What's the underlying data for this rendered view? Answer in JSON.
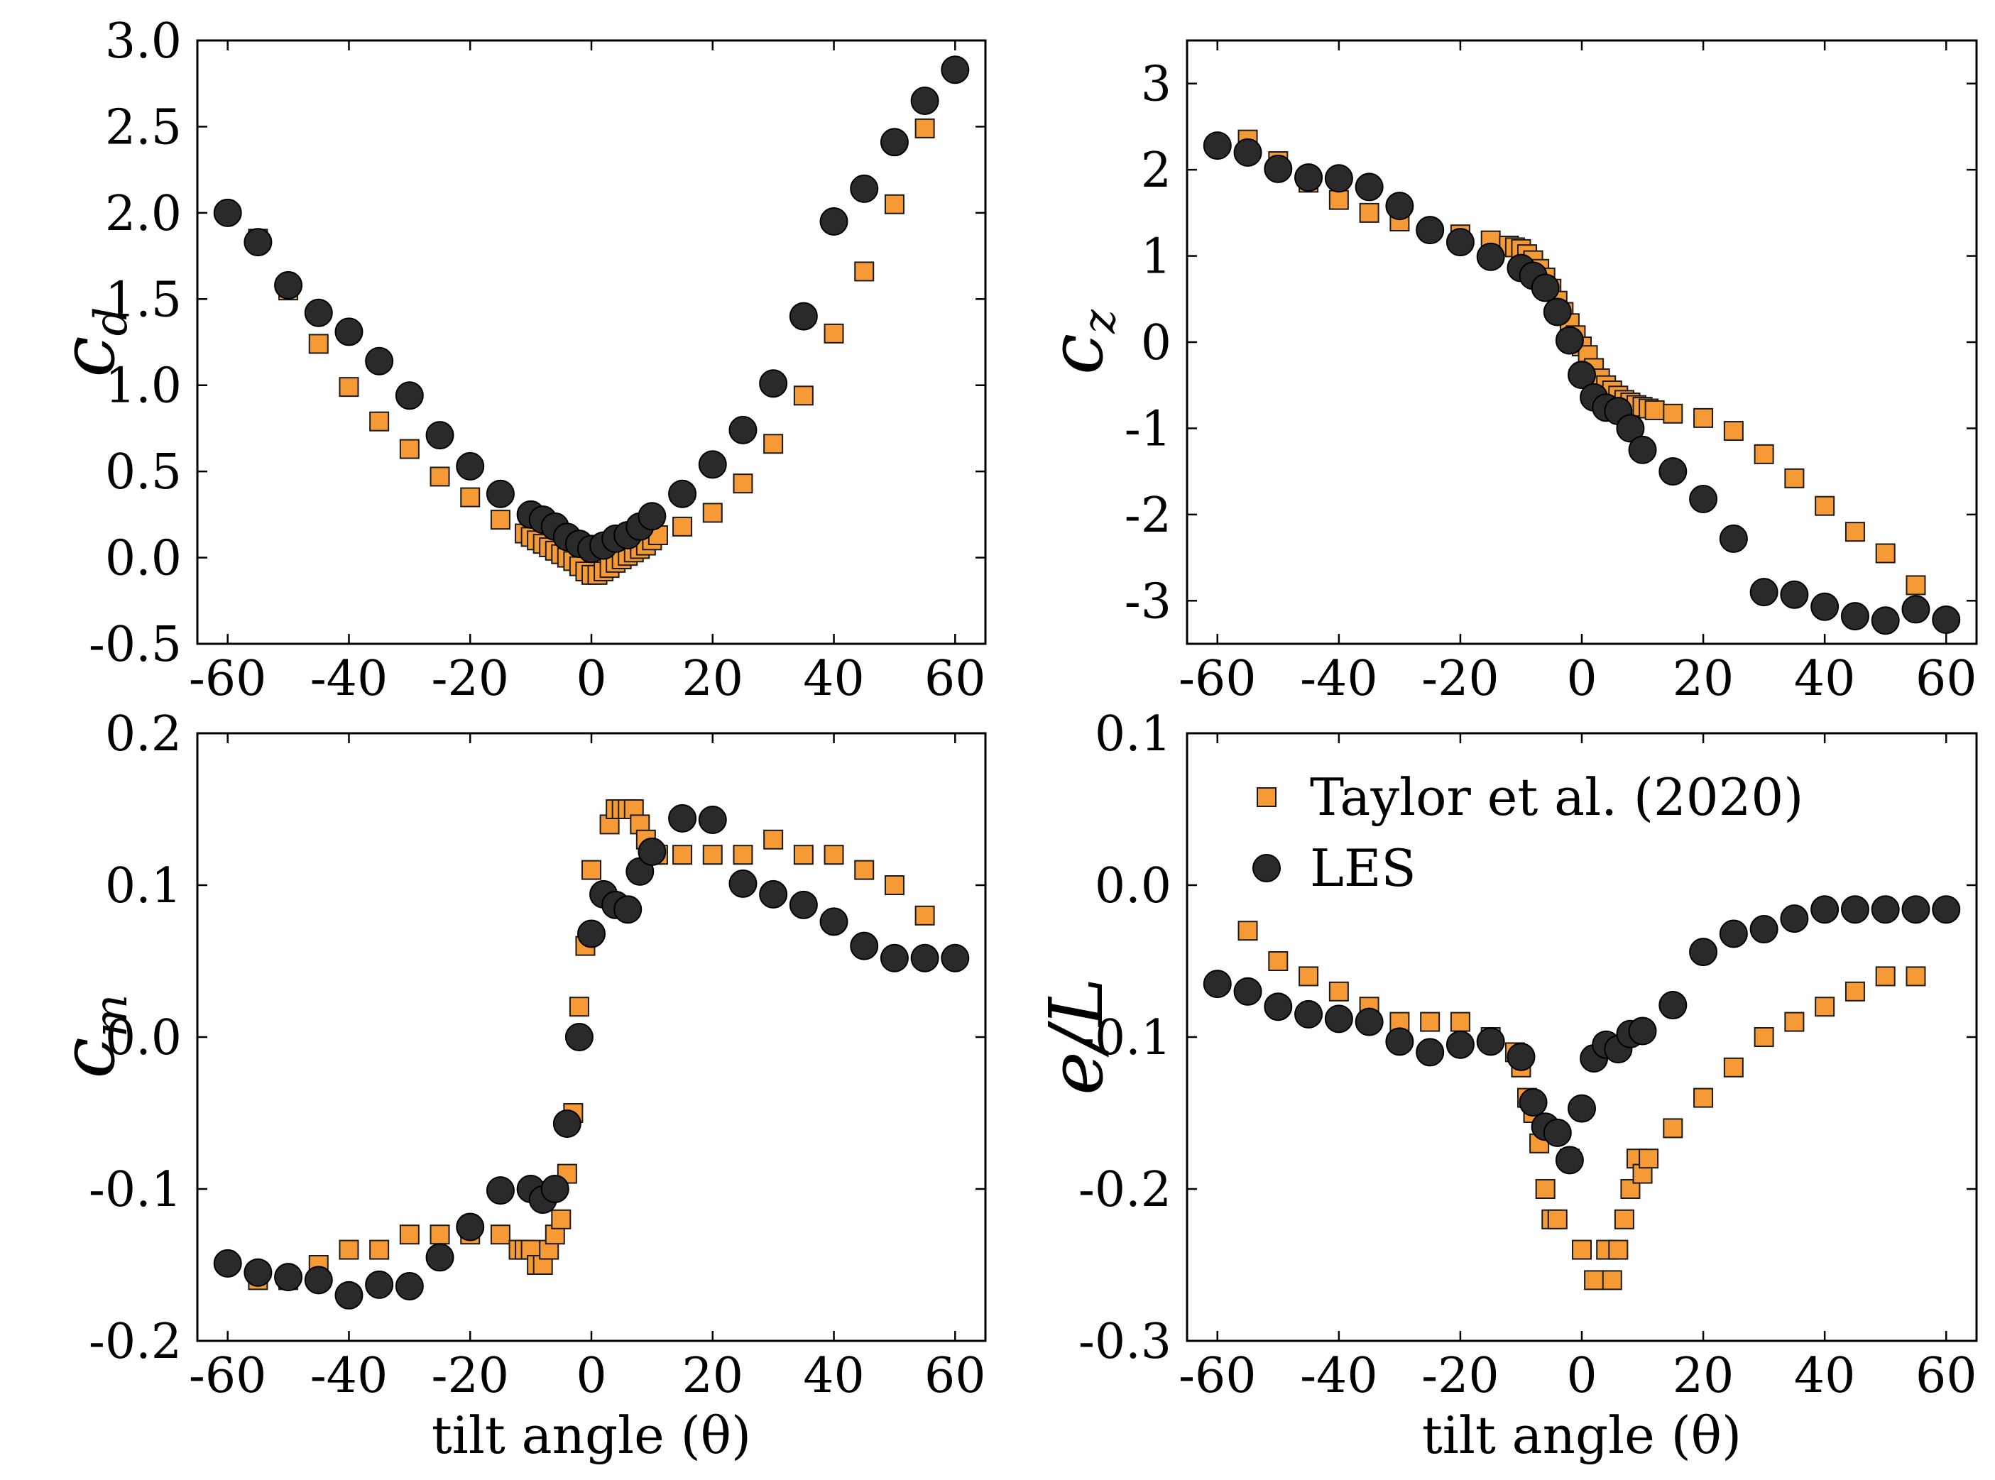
{
  "colors": {
    "taylor": "#f59a35",
    "les": "#2a2a2a",
    "edge": "#1a1a1a"
  },
  "legend": {
    "series_a": "Taylor et al. (2020)",
    "series_b": "LES"
  },
  "chart_data": [
    {
      "id": "cd",
      "type": "scatter",
      "ylabel": "c",
      "ylabel_sub": "d",
      "xlabel": "",
      "xlim": [
        -65,
        65
      ],
      "ylim": [
        -0.5,
        3.0
      ],
      "xticks": [
        -60,
        -40,
        -20,
        0,
        20,
        40,
        60
      ],
      "xtick_labels": [
        "-60",
        "-40",
        "-20",
        "0",
        "20",
        "40",
        "60"
      ],
      "yticks": [
        -0.5,
        0.0,
        0.5,
        1.0,
        1.5,
        2.0,
        2.5,
        3.0
      ],
      "ytick_labels": [
        "-0.5",
        "0.0",
        "0.5",
        "1.0",
        "1.5",
        "2.0",
        "2.5",
        "3.0"
      ],
      "series": [
        {
          "name": "Taylor et al. (2020)",
          "marker": "square",
          "x": [
            -55,
            -50,
            -45,
            -40,
            -35,
            -30,
            -25,
            -20,
            -15,
            -11,
            -10,
            -9,
            -8,
            -7,
            -6,
            -5,
            -4,
            -3,
            -2,
            -1,
            0,
            1,
            2,
            3,
            4,
            5,
            6,
            7,
            8,
            9,
            10,
            11,
            15,
            20,
            25,
            30,
            35,
            40,
            45,
            50,
            55
          ],
          "y": [
            1.85,
            1.55,
            1.24,
            0.99,
            0.79,
            0.63,
            0.47,
            0.35,
            0.22,
            0.14,
            0.12,
            0.1,
            0.08,
            0.06,
            0.04,
            0.02,
            0.0,
            -0.02,
            -0.05,
            -0.08,
            -0.1,
            -0.1,
            -0.08,
            -0.06,
            -0.03,
            -0.01,
            0.01,
            0.03,
            0.05,
            0.07,
            0.1,
            0.13,
            0.18,
            0.26,
            0.43,
            0.66,
            0.94,
            1.3,
            1.66,
            2.05,
            2.49
          ]
        },
        {
          "name": "LES",
          "marker": "circle",
          "x": [
            -60,
            -55,
            -50,
            -45,
            -40,
            -35,
            -30,
            -25,
            -20,
            -15,
            -10,
            -8,
            -6,
            -4,
            -2,
            0,
            2,
            4,
            6,
            8,
            10,
            15,
            20,
            25,
            30,
            35,
            40,
            45,
            50,
            55,
            60
          ],
          "y": [
            2.0,
            1.83,
            1.58,
            1.42,
            1.31,
            1.14,
            0.94,
            0.71,
            0.53,
            0.37,
            0.25,
            0.22,
            0.18,
            0.12,
            0.08,
            0.05,
            0.07,
            0.11,
            0.13,
            0.18,
            0.24,
            0.37,
            0.54,
            0.74,
            1.01,
            1.4,
            1.95,
            2.14,
            2.41,
            2.65,
            2.83
          ]
        }
      ]
    },
    {
      "id": "cz",
      "type": "scatter",
      "ylabel": "c",
      "ylabel_sub": "z",
      "xlabel": "",
      "xlim": [
        -65,
        65
      ],
      "ylim": [
        -3.5,
        3.5
      ],
      "xticks": [
        -60,
        -40,
        -20,
        0,
        20,
        40,
        60
      ],
      "xtick_labels": [
        "-60",
        "-40",
        "-20",
        "0",
        "20",
        "40",
        "60"
      ],
      "yticks": [
        -3,
        -2,
        -1,
        0,
        1,
        2,
        3
      ],
      "ytick_labels": [
        "-3",
        "-2",
        "-1",
        "0",
        "1",
        "2",
        "3"
      ],
      "series": [
        {
          "name": "Taylor et al. (2020)",
          "marker": "square",
          "x": [
            -55,
            -50,
            -45,
            -40,
            -35,
            -30,
            -25,
            -20,
            -15,
            -12,
            -11,
            -10,
            -9,
            -8,
            -7,
            -6,
            -5,
            -4,
            -3,
            -2,
            -1,
            0,
            1,
            2,
            3,
            4,
            5,
            6,
            7,
            8,
            9,
            10,
            11,
            12,
            15,
            20,
            25,
            30,
            35,
            40,
            45,
            50,
            55
          ],
          "y": [
            2.35,
            2.1,
            1.85,
            1.65,
            1.5,
            1.4,
            1.3,
            1.25,
            1.18,
            1.12,
            1.1,
            1.08,
            1.02,
            0.95,
            0.85,
            0.75,
            0.62,
            0.48,
            0.35,
            0.22,
            0.08,
            -0.05,
            -0.15,
            -0.3,
            -0.42,
            -0.5,
            -0.56,
            -0.62,
            -0.67,
            -0.7,
            -0.73,
            -0.75,
            -0.77,
            -0.79,
            -0.83,
            -0.88,
            -1.03,
            -1.3,
            -1.58,
            -1.9,
            -2.2,
            -2.45,
            -2.82
          ]
        },
        {
          "name": "LES",
          "marker": "circle",
          "x": [
            -60,
            -55,
            -50,
            -45,
            -40,
            -35,
            -30,
            -25,
            -20,
            -15,
            -10,
            -8,
            -6,
            -4,
            -2,
            0,
            2,
            4,
            6,
            8,
            10,
            15,
            20,
            25,
            30,
            35,
            40,
            45,
            50,
            55,
            60
          ],
          "y": [
            2.28,
            2.2,
            2.01,
            1.91,
            1.9,
            1.8,
            1.58,
            1.3,
            1.16,
            0.99,
            0.86,
            0.77,
            0.63,
            0.35,
            0.02,
            -0.38,
            -0.64,
            -0.76,
            -0.8,
            -1.0,
            -1.25,
            -1.5,
            -1.82,
            -2.28,
            -2.9,
            -2.93,
            -3.07,
            -3.18,
            -3.23,
            -3.1,
            -3.22
          ]
        }
      ]
    },
    {
      "id": "cm",
      "type": "scatter",
      "ylabel": "c",
      "ylabel_sub": "m",
      "xlabel": "tilt angle (θ)",
      "xlim": [
        -65,
        65
      ],
      "ylim": [
        -0.2,
        0.2
      ],
      "xticks": [
        -60,
        -40,
        -20,
        0,
        20,
        40,
        60
      ],
      "xtick_labels": [
        "-60",
        "-40",
        "-20",
        "0",
        "20",
        "40",
        "60"
      ],
      "yticks": [
        -0.2,
        -0.1,
        0.0,
        0.1,
        0.2
      ],
      "ytick_labels": [
        "-0.2",
        "-0.1",
        "0.0",
        "0.1",
        "0.2"
      ],
      "series": [
        {
          "name": "Taylor et al. (2020)",
          "marker": "square",
          "x": [
            -55,
            -50,
            -45,
            -40,
            -35,
            -30,
            -25,
            -20,
            -15,
            -12,
            -11,
            -10,
            -9,
            -8,
            -7,
            -6,
            -5,
            -4,
            -3,
            -2,
            -1,
            0,
            3,
            4,
            5,
            6,
            7,
            8,
            9,
            10,
            11,
            15,
            20,
            25,
            30,
            35,
            40,
            45,
            50,
            55
          ],
          "y": [
            -0.16,
            -0.16,
            -0.15,
            -0.14,
            -0.14,
            -0.13,
            -0.13,
            -0.13,
            -0.13,
            -0.14,
            -0.14,
            -0.14,
            -0.15,
            -0.15,
            -0.14,
            -0.13,
            -0.12,
            -0.09,
            -0.05,
            0.02,
            0.06,
            0.11,
            0.14,
            0.15,
            0.15,
            0.15,
            0.15,
            0.14,
            0.13,
            0.12,
            0.12,
            0.12,
            0.12,
            0.12,
            0.13,
            0.12,
            0.12,
            0.11,
            0.1,
            0.08
          ]
        },
        {
          "name": "LES",
          "marker": "circle",
          "x": [
            -60,
            -55,
            -50,
            -45,
            -40,
            -35,
            -30,
            -25,
            -20,
            -15,
            -10,
            -8,
            -6,
            -4,
            -2,
            0,
            2,
            4,
            6,
            8,
            10,
            15,
            20,
            25,
            30,
            35,
            40,
            45,
            50,
            55,
            60
          ],
          "y": [
            -0.149,
            -0.155,
            -0.158,
            -0.16,
            -0.17,
            -0.163,
            -0.164,
            -0.145,
            -0.125,
            -0.101,
            -0.1,
            -0.107,
            -0.1,
            -0.057,
            0.0,
            0.068,
            0.094,
            0.087,
            0.084,
            0.109,
            0.122,
            0.144,
            0.143,
            0.101,
            0.094,
            0.087,
            0.076,
            0.06,
            0.052,
            0.052,
            0.052
          ]
        }
      ]
    },
    {
      "id": "eL",
      "type": "scatter",
      "ylabel": "e/L",
      "ylabel_sub": "",
      "xlabel": "tilt angle (θ)",
      "xlim": [
        -65,
        65
      ],
      "ylim": [
        -0.3,
        0.1
      ],
      "xticks": [
        -60,
        -40,
        -20,
        0,
        20,
        40,
        60
      ],
      "xtick_labels": [
        "-60",
        "-40",
        "-20",
        "0",
        "20",
        "40",
        "60"
      ],
      "yticks": [
        -0.3,
        -0.2,
        -0.1,
        0.0,
        0.1
      ],
      "ytick_labels": [
        "-0.3",
        "-0.2",
        "-0.1",
        "0.0",
        "0.1"
      ],
      "series": [
        {
          "name": "Taylor et al. (2020)",
          "marker": "square",
          "x": [
            -55,
            -50,
            -45,
            -40,
            -35,
            -30,
            -25,
            -20,
            -15,
            -11,
            -10,
            -9,
            -8,
            -7,
            -6,
            -5,
            -4,
            -2,
            0,
            2,
            4,
            5,
            6,
            7,
            8,
            9,
            10,
            11,
            15,
            20,
            25,
            30,
            35,
            40,
            45,
            50,
            55
          ],
          "y": [
            -0.03,
            -0.05,
            -0.06,
            -0.07,
            -0.08,
            -0.09,
            -0.09,
            -0.09,
            -0.1,
            -0.11,
            -0.12,
            -0.14,
            -0.15,
            -0.17,
            -0.2,
            -0.22,
            -0.22,
            -0.18,
            -0.24,
            -0.26,
            -0.24,
            -0.26,
            -0.24,
            -0.22,
            -0.2,
            -0.18,
            -0.19,
            -0.18,
            -0.16,
            -0.14,
            -0.12,
            -0.1,
            -0.09,
            -0.08,
            -0.07,
            -0.06,
            -0.06
          ]
        },
        {
          "name": "LES",
          "marker": "circle",
          "x": [
            -60,
            -55,
            -50,
            -45,
            -40,
            -35,
            -30,
            -25,
            -20,
            -15,
            -10,
            -8,
            -6,
            -4,
            -2,
            0,
            2,
            4,
            6,
            8,
            10,
            15,
            20,
            25,
            30,
            35,
            40,
            45,
            50,
            55,
            60
          ],
          "y": [
            -0.065,
            -0.07,
            -0.08,
            -0.085,
            -0.088,
            -0.09,
            -0.103,
            -0.11,
            -0.105,
            -0.103,
            -0.113,
            -0.143,
            -0.159,
            -0.163,
            -0.181,
            -0.147,
            -0.114,
            -0.105,
            -0.108,
            -0.098,
            -0.096,
            -0.079,
            -0.044,
            -0.032,
            -0.029,
            -0.022,
            -0.016,
            -0.016,
            -0.016,
            -0.016,
            -0.016
          ]
        }
      ]
    }
  ]
}
